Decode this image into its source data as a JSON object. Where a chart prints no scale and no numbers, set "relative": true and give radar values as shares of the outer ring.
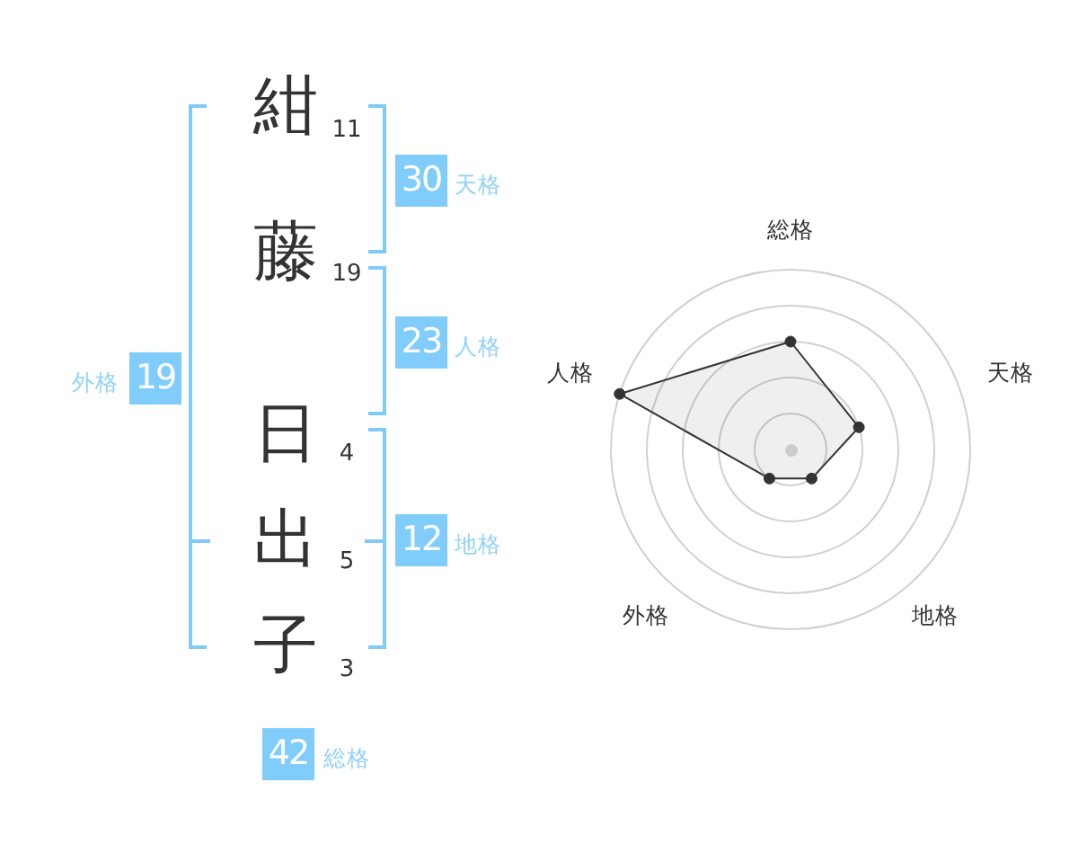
{
  "chart_data": [
    {
      "type": "other",
      "annotations": [
        "紺",
        "11",
        "藤",
        "19",
        "日",
        "4",
        "出",
        "5",
        "子",
        "3",
        "30",
        "天格",
        "23",
        "人格",
        "12",
        "地格",
        "外格",
        "19",
        "42",
        "総格"
      ]
    },
    {
      "type": "radar",
      "categories": [
        "総格",
        "天格",
        "地格",
        "外格",
        "人格"
      ],
      "relative": true,
      "series": [
        {
          "color": "#333333",
          "values": [
            0.6,
            0.4,
            0.2,
            0.2,
            1
          ]
        }
      ],
      "grid": true,
      "marker": "circle"
    }
  ]
}
